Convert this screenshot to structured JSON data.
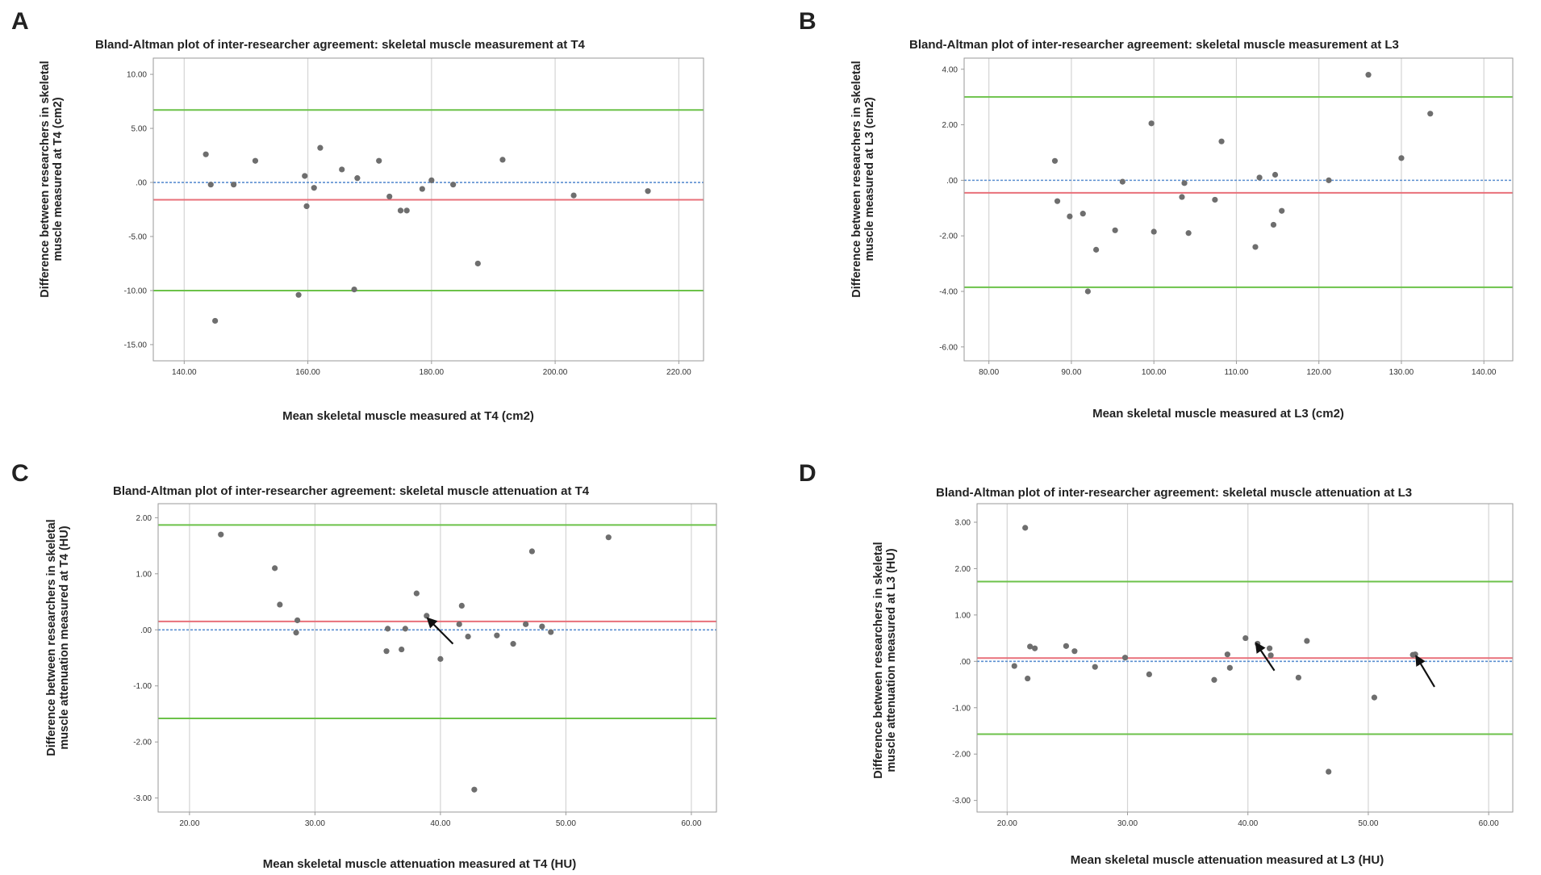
{
  "panel_letters": [
    "A",
    "B",
    "C",
    "D"
  ],
  "colors": {
    "limit_line": "#6cc24a",
    "bias_line": "#e8707a",
    "zero_line": "#5b8fd0",
    "point": "#6e6e6e",
    "grid": "#d4d4d4",
    "frame": "#9a9a9a"
  },
  "chart_data": [
    {
      "type": "scatter",
      "title": "Bland-Altman plot of inter-researcher agreement: skeletal muscle measurement at T4",
      "xlabel": "Mean skeletal muscle measured at T4 (cm2)",
      "ylabel": [
        "Difference between researchers in skeletal",
        "muscle measured at T4 (cm2)"
      ],
      "xlim": [
        135,
        224
      ],
      "ylim": [
        -16.5,
        11.5
      ],
      "xticks": [
        140,
        160,
        180,
        200,
        220
      ],
      "xtick_labels": [
        "140.00",
        "160.00",
        "180.00",
        "200.00",
        "220.00"
      ],
      "yticks": [
        10,
        5,
        0,
        -5,
        -10,
        -15
      ],
      "ytick_labels": [
        "10.00",
        "5.00",
        ".00",
        "-5.00",
        "-10.00",
        "-15.00"
      ],
      "upper_loa": 6.7,
      "bias": -1.6,
      "lower_loa": -10.0,
      "points": [
        [
          143.5,
          2.6
        ],
        [
          144.3,
          -0.2
        ],
        [
          145.0,
          -12.8
        ],
        [
          148.0,
          -0.2
        ],
        [
          151.5,
          2.0
        ],
        [
          158.5,
          -10.4
        ],
        [
          159.5,
          0.6
        ],
        [
          159.8,
          -2.2
        ],
        [
          161.0,
          -0.5
        ],
        [
          162.0,
          3.2
        ],
        [
          165.5,
          1.2
        ],
        [
          167.5,
          -9.9
        ],
        [
          168.0,
          0.4
        ],
        [
          171.5,
          2.0
        ],
        [
          173.2,
          -1.3
        ],
        [
          175.0,
          -2.6
        ],
        [
          176.0,
          -2.6
        ],
        [
          178.5,
          -0.6
        ],
        [
          180.0,
          0.2
        ],
        [
          183.5,
          -0.2
        ],
        [
          187.5,
          -7.5
        ],
        [
          191.5,
          2.1
        ],
        [
          203.0,
          -1.2
        ],
        [
          215.0,
          -0.8
        ]
      ],
      "arrows": []
    },
    {
      "type": "scatter",
      "title": "Bland-Altman plot of inter-researcher agreement: skeletal muscle measurement at L3",
      "xlabel": "Mean skeletal muscle measured at L3 (cm2)",
      "ylabel": [
        "Difference between researchers in skeletal",
        "muscle measured at L3 (cm2)"
      ],
      "xlim": [
        77,
        143.5
      ],
      "ylim": [
        -6.5,
        4.4
      ],
      "xticks": [
        80,
        90,
        100,
        110,
        120,
        130,
        140
      ],
      "xtick_labels": [
        "80.00",
        "90.00",
        "100.00",
        "110.00",
        "120.00",
        "130.00",
        "140.00"
      ],
      "yticks": [
        4,
        2,
        0,
        -2,
        -4,
        -6
      ],
      "ytick_labels": [
        "4.00",
        "2.00",
        ".00",
        "-2.00",
        "-4.00",
        "-6.00"
      ],
      "upper_loa": 3.0,
      "bias": -0.45,
      "lower_loa": -3.85,
      "points": [
        [
          88.0,
          0.7
        ],
        [
          88.3,
          -0.75
        ],
        [
          89.8,
          -1.3
        ],
        [
          91.4,
          -1.2
        ],
        [
          92.0,
          -4.0
        ],
        [
          93.0,
          -2.5
        ],
        [
          95.3,
          -1.8
        ],
        [
          96.2,
          -0.05
        ],
        [
          99.7,
          2.05
        ],
        [
          100.0,
          -1.85
        ],
        [
          103.4,
          -0.6
        ],
        [
          103.7,
          -0.1
        ],
        [
          104.2,
          -1.9
        ],
        [
          107.4,
          -0.7
        ],
        [
          108.2,
          1.4
        ],
        [
          112.3,
          -2.4
        ],
        [
          112.8,
          0.1
        ],
        [
          114.5,
          -1.6
        ],
        [
          114.7,
          0.2
        ],
        [
          115.5,
          -1.1
        ],
        [
          121.2,
          0.0
        ],
        [
          126.0,
          3.8
        ],
        [
          130.0,
          0.8
        ],
        [
          133.5,
          2.4
        ]
      ],
      "arrows": []
    },
    {
      "type": "scatter",
      "title": "Bland-Altman plot of inter-researcher agreement: skeletal muscle attenuation at T4",
      "xlabel": "Mean skeletal muscle attenuation measured at T4 (HU)",
      "ylabel": [
        "Difference between researchers in skeletal",
        "muscle attenuation measured at T4 (HU)"
      ],
      "xlim": [
        17.5,
        62
      ],
      "ylim": [
        -3.25,
        2.25
      ],
      "xticks": [
        20,
        30,
        40,
        50,
        60
      ],
      "xtick_labels": [
        "20.00",
        "30.00",
        "40.00",
        "50.00",
        "60.00"
      ],
      "yticks": [
        2,
        1,
        0,
        -1,
        -2,
        -3
      ],
      "ytick_labels": [
        "2.00",
        "1.00",
        ".00",
        "-1.00",
        "-2.00",
        "-3.00"
      ],
      "upper_loa": 1.87,
      "bias": 0.15,
      "lower_loa": -1.58,
      "points": [
        [
          22.5,
          1.7
        ],
        [
          26.8,
          1.1
        ],
        [
          27.2,
          0.45
        ],
        [
          28.5,
          -0.05
        ],
        [
          28.6,
          0.17
        ],
        [
          35.8,
          0.02
        ],
        [
          35.7,
          -0.38
        ],
        [
          36.9,
          -0.35
        ],
        [
          37.2,
          0.02
        ],
        [
          38.1,
          0.65
        ],
        [
          38.9,
          0.25
        ],
        [
          40.0,
          -0.52
        ],
        [
          41.5,
          0.1
        ],
        [
          41.7,
          0.43
        ],
        [
          42.2,
          -0.12
        ],
        [
          42.7,
          -2.85
        ],
        [
          44.5,
          -0.1
        ],
        [
          45.8,
          -0.25
        ],
        [
          46.8,
          0.1
        ],
        [
          47.3,
          1.4
        ],
        [
          48.1,
          0.06
        ],
        [
          48.8,
          -0.04
        ],
        [
          53.4,
          1.65
        ]
      ],
      "arrows": [
        [
          41.0,
          -0.25,
          39.0,
          0.2
        ]
      ]
    },
    {
      "type": "scatter",
      "title": "Bland-Altman plot of inter-researcher agreement: skeletal muscle attenuation at L3",
      "xlabel": "Mean skeletal muscle attenuation measured at L3 (HU)",
      "ylabel": [
        "Difference between researchers in skeletal",
        "muscle attenuation measured at L3 (HU)"
      ],
      "xlim": [
        17.5,
        62
      ],
      "ylim": [
        -3.25,
        3.4
      ],
      "xticks": [
        20,
        30,
        40,
        50,
        60
      ],
      "xtick_labels": [
        "20.00",
        "30.00",
        "40.00",
        "50.00",
        "60.00"
      ],
      "yticks": [
        3,
        2,
        1,
        0,
        -1,
        -2,
        -3
      ],
      "ytick_labels": [
        "3.00",
        "2.00",
        "1.00",
        ".00",
        "-1.00",
        "-2.00",
        "-3.00"
      ],
      "upper_loa": 1.72,
      "bias": 0.07,
      "lower_loa": -1.57,
      "points": [
        [
          20.6,
          -0.1
        ],
        [
          21.5,
          2.88
        ],
        [
          21.7,
          -0.37
        ],
        [
          21.9,
          0.32
        ],
        [
          22.3,
          0.28
        ],
        [
          24.9,
          0.33
        ],
        [
          25.6,
          0.22
        ],
        [
          27.3,
          -0.12
        ],
        [
          29.8,
          0.08
        ],
        [
          31.8,
          -0.28
        ],
        [
          37.2,
          -0.4
        ],
        [
          38.3,
          0.15
        ],
        [
          38.5,
          -0.14
        ],
        [
          39.8,
          0.5
        ],
        [
          40.8,
          0.38
        ],
        [
          41.8,
          0.28
        ],
        [
          41.9,
          0.13
        ],
        [
          44.2,
          -0.35
        ],
        [
          44.9,
          0.44
        ],
        [
          50.5,
          -0.78
        ],
        [
          46.7,
          -2.38
        ],
        [
          53.7,
          0.14
        ],
        [
          53.9,
          0.15
        ]
      ],
      "arrows": [
        [
          42.2,
          -0.2,
          40.7,
          0.38
        ],
        [
          55.5,
          -0.55,
          54.0,
          0.1
        ]
      ]
    }
  ]
}
